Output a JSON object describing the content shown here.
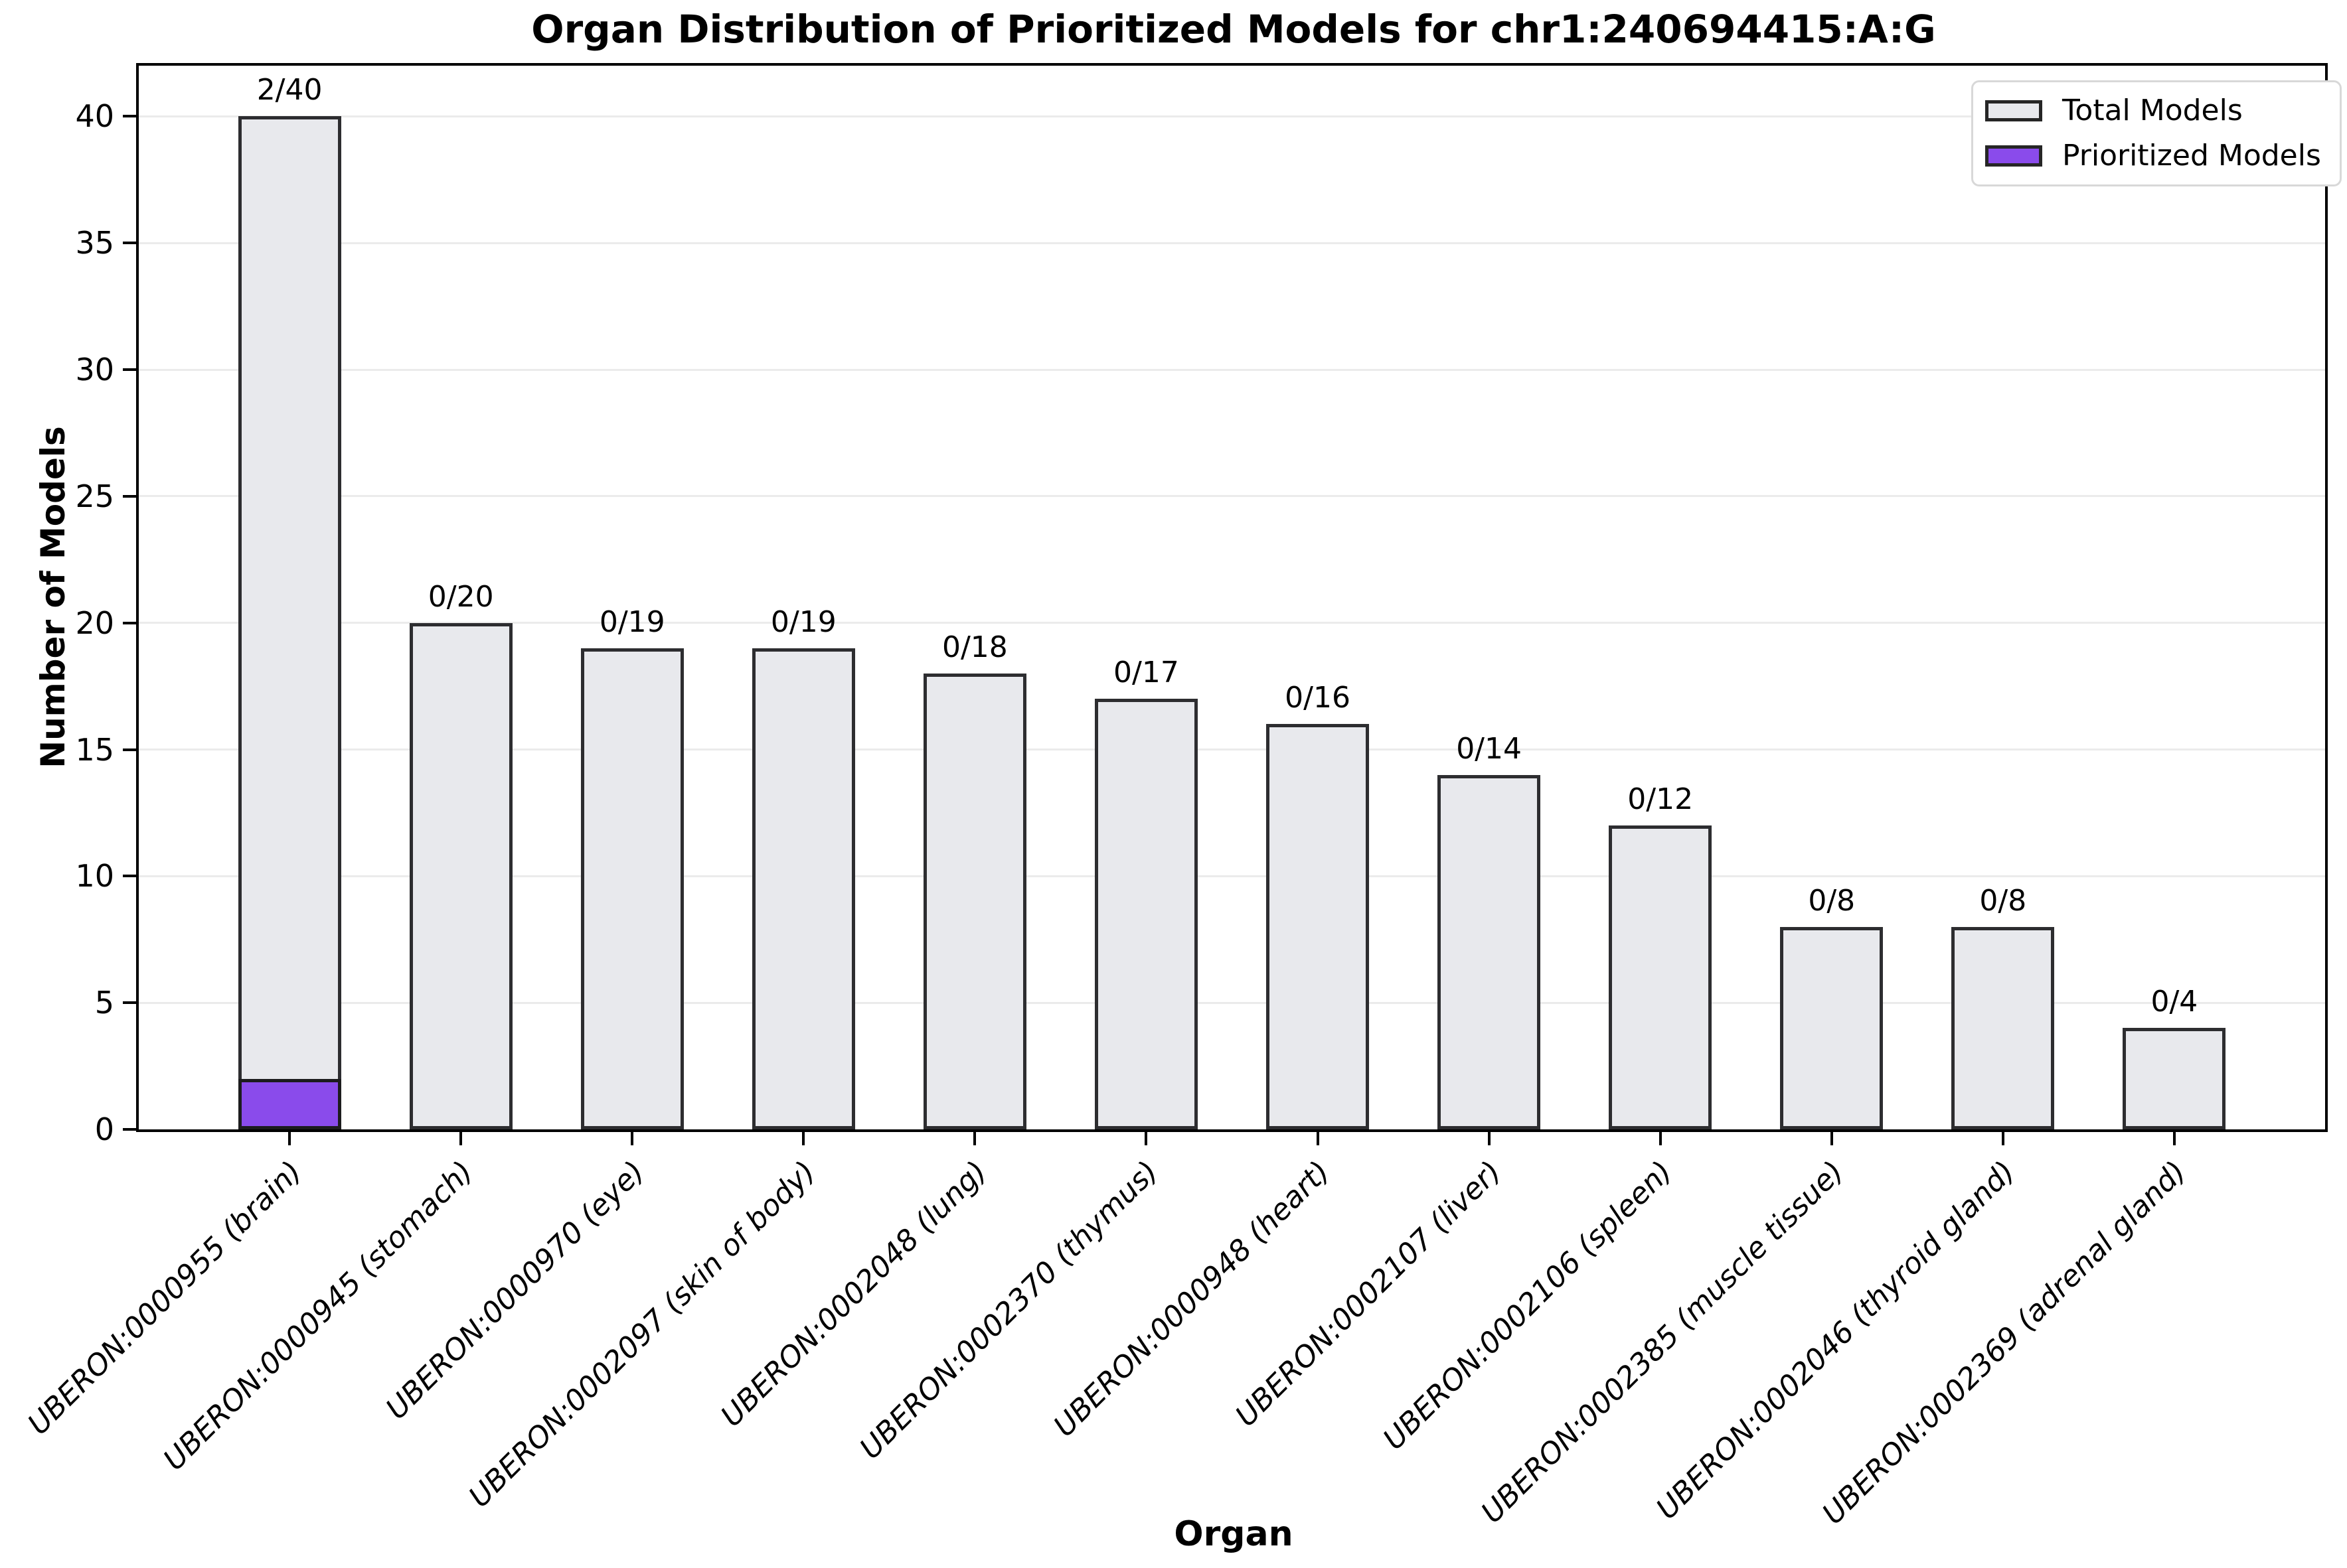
{
  "chart_data": {
    "type": "bar",
    "stacked": true,
    "title": "Organ Distribution of Prioritized Models for chr1:240694415:A:G",
    "xlabel": "Organ",
    "ylabel": "Number of Models",
    "categories": [
      "UBERON:0000955 (brain)",
      "UBERON:0000945 (stomach)",
      "UBERON:0000970 (eye)",
      "UBERON:0002097 (skin of body)",
      "UBERON:0002048 (lung)",
      "UBERON:0002370 (thymus)",
      "UBERON:0000948 (heart)",
      "UBERON:0002107 (liver)",
      "UBERON:0002106 (spleen)",
      "UBERON:0002385 (muscle tissue)",
      "UBERON:0002046 (thyroid gland)",
      "UBERON:0002369 (adrenal gland)"
    ],
    "series": [
      {
        "name": "Total Models",
        "values": [
          40,
          20,
          19,
          19,
          18,
          17,
          16,
          14,
          12,
          8,
          8,
          4
        ],
        "color": "#e8e9ed"
      },
      {
        "name": "Prioritized Models",
        "values": [
          2,
          0,
          0,
          0,
          0,
          0,
          0,
          0,
          0,
          0,
          0,
          0
        ],
        "color": "#8a4beb"
      }
    ],
    "bar_labels": [
      "2/40",
      "0/20",
      "0/19",
      "0/19",
      "0/18",
      "0/17",
      "0/16",
      "0/14",
      "0/12",
      "0/8",
      "0/8",
      "0/4"
    ],
    "yticks": [
      0,
      5,
      10,
      15,
      20,
      25,
      30,
      35,
      40
    ],
    "ylim": [
      0,
      42
    ],
    "xlim": [
      -0.88,
      11.88
    ],
    "bar_width_units": 0.6,
    "grid": "horizontal",
    "gridline_color": "#ebebeb",
    "bar_edge_color": "#2d2d30",
    "legend": {
      "position": "upper right",
      "entries": [
        {
          "label": "Total Models",
          "color": "#e8e9ed"
        },
        {
          "label": "Prioritized Models",
          "color": "#8a4beb"
        }
      ]
    }
  }
}
